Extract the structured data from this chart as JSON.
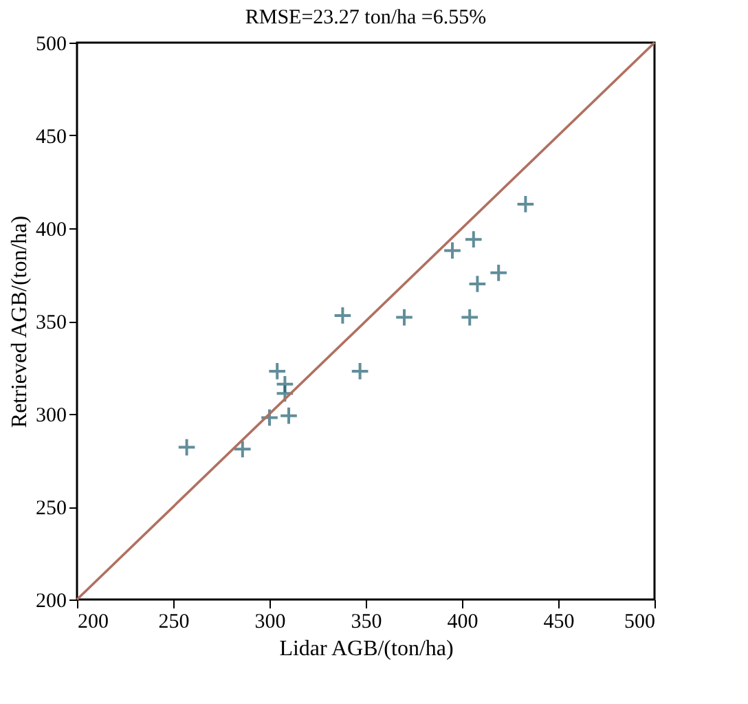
{
  "chart_data": {
    "type": "scatter",
    "title": "RMSE=23.27 ton/ha =6.55%",
    "xlabel": "Lidar AGB/(ton/ha)",
    "ylabel": "Retrieved AGB/(ton/ha)",
    "xlim": [
      200,
      500
    ],
    "ylim": [
      200,
      500
    ],
    "xticks": [
      200,
      250,
      300,
      350,
      400,
      450,
      500
    ],
    "yticks": [
      200,
      250,
      300,
      350,
      400,
      450,
      500
    ],
    "grid": false,
    "marker": "cross",
    "series": [
      {
        "color": "#1f5f70",
        "x": [
          257,
          286,
          300,
          304,
          308,
          308,
          310,
          338,
          347,
          370,
          395,
          404,
          406,
          408,
          419,
          433
        ],
        "values": [
          282,
          281,
          298,
          323,
          316,
          311,
          299,
          353,
          323,
          352,
          388,
          352,
          394,
          370,
          376,
          413
        ]
      },
      {
        "type": "line",
        "color": "#b07060",
        "x": [
          200,
          500
        ],
        "values": [
          200,
          500
        ],
        "marker": "none",
        "line_style": "solid"
      }
    ]
  }
}
